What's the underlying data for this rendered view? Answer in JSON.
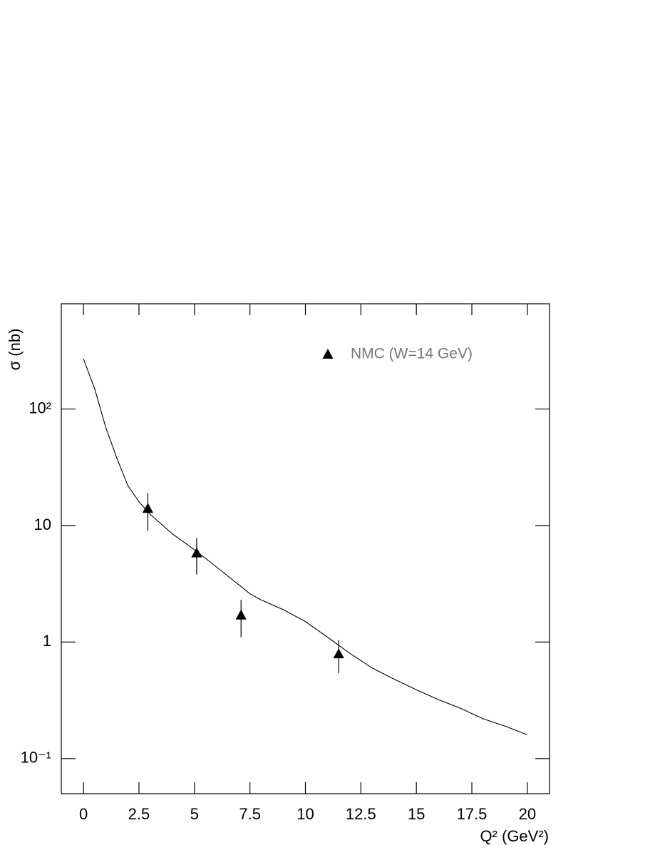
{
  "chart_data": {
    "type": "scatter",
    "x_label": "Q² (GeV²)",
    "y_label": "σ (nb)",
    "xlim": [
      -1,
      21
    ],
    "ylim": [
      0.05,
      800
    ],
    "y_scale": "log",
    "xticks": [
      0,
      2.5,
      5,
      7.5,
      10,
      12.5,
      15,
      17.5,
      20
    ],
    "yticks": [
      {
        "value": 0.1,
        "label": "10⁻¹"
      },
      1,
      10,
      {
        "value": 100,
        "label": "10²"
      }
    ],
    "legend_position": "upper right",
    "series": [
      {
        "name": "NMC (W=14 GeV)",
        "color": "#000000",
        "marker": "triangle",
        "x": [
          2.9,
          5.1,
          7.1,
          11.5
        ],
        "values": [
          14,
          5.8,
          1.7,
          0.79
        ],
        "errors": [
          5,
          2,
          0.6,
          0.25
        ]
      },
      {
        "type": "line",
        "color": "#000000",
        "x": [
          0,
          0.5,
          1,
          1.5,
          2,
          2.5,
          3,
          4,
          5,
          6,
          7,
          7.5,
          8,
          9,
          10,
          11,
          12,
          13,
          14,
          15,
          16,
          17,
          18,
          19,
          20
        ],
        "values": [
          269,
          150,
          70,
          38,
          22,
          16,
          12.5,
          8.5,
          6.2,
          4.4,
          3.1,
          2.6,
          2.3,
          1.9,
          1.5,
          1.1,
          0.8,
          0.6,
          0.48,
          0.39,
          0.32,
          0.27,
          0.22,
          0.19,
          0.16
        ]
      }
    ]
  }
}
